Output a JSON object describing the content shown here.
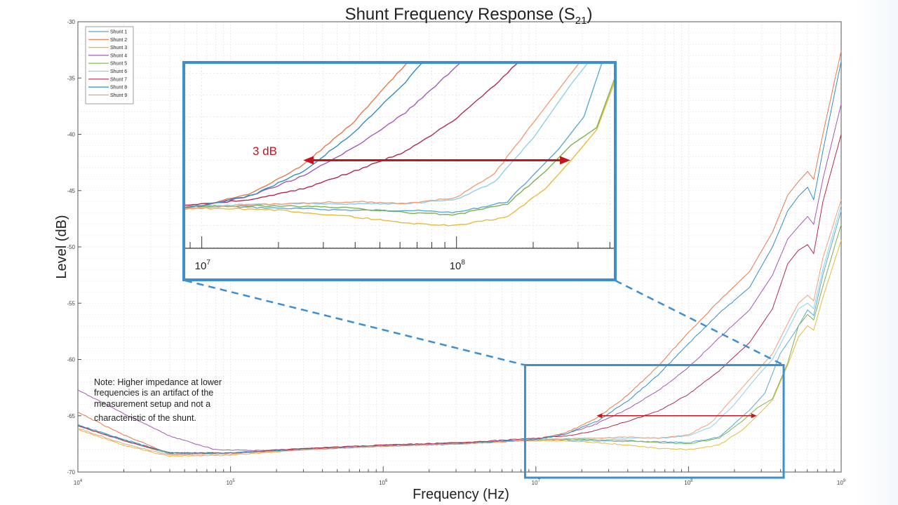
{
  "chart_data": {
    "type": "line",
    "title": "Shunt Frequency Response (S",
    "title_sub": "21",
    "title_close": ")",
    "xlabel": "Frequency (Hz)",
    "ylabel": "Level (dB)",
    "xscale": "log",
    "xlim": [
      10000,
      1000000000
    ],
    "ylim": [
      -70,
      -30
    ],
    "grid": true,
    "legend_position": "top-left",
    "yticks": [
      "-30",
      "-35",
      "-40",
      "-45",
      "-50",
      "-55",
      "-60",
      "-65",
      "-70"
    ],
    "ytick_values": [
      -30,
      -35,
      -40,
      -45,
      -50,
      -55,
      -60,
      -65,
      -70
    ],
    "xticks": [
      {
        "base": "10",
        "exp": "4",
        "value": 10000
      },
      {
        "base": "10",
        "exp": "5",
        "value": 100000
      },
      {
        "base": "10",
        "exp": "6",
        "value": 1000000
      },
      {
        "base": "10",
        "exp": "7",
        "value": 10000000
      },
      {
        "base": "10",
        "exp": "8",
        "value": 100000000
      },
      {
        "base": "10",
        "exp": "9",
        "value": 1000000000
      }
    ],
    "series": [
      {
        "name": "Shunt 1",
        "color": "#5aa9d6",
        "points": [
          [
            4,
            -65.9
          ],
          [
            4.3,
            -67.2
          ],
          [
            4.6,
            -68.3
          ],
          [
            5,
            -68.3
          ],
          [
            5.5,
            -68.0
          ],
          [
            6,
            -67.7
          ],
          [
            6.5,
            -67.5
          ],
          [
            7,
            -67.1
          ],
          [
            7.3,
            -67.2
          ],
          [
            7.6,
            -67.3
          ],
          [
            7.8,
            -67.3
          ],
          [
            8,
            -67.4
          ],
          [
            8.2,
            -66.9
          ],
          [
            8.4,
            -64.5
          ],
          [
            8.5,
            -63.0
          ],
          [
            8.6,
            -59.5
          ],
          [
            8.7,
            -57.5
          ],
          [
            8.78,
            -55.6
          ],
          [
            8.82,
            -56.1
          ],
          [
            8.88,
            -52.5
          ],
          [
            9,
            -46.8
          ]
        ]
      },
      {
        "name": "Shunt 2",
        "color": "#e8784a",
        "points": [
          [
            4,
            -64.7
          ],
          [
            4.3,
            -66.7
          ],
          [
            4.6,
            -68.4
          ],
          [
            5,
            -68.3
          ],
          [
            5.5,
            -67.9
          ],
          [
            6,
            -67.7
          ],
          [
            6.5,
            -67.4
          ],
          [
            7,
            -67.1
          ],
          [
            7.2,
            -66.5
          ],
          [
            7.4,
            -65.2
          ],
          [
            7.6,
            -63.2
          ],
          [
            7.8,
            -60.6
          ],
          [
            8,
            -57.6
          ],
          [
            8.2,
            -54.8
          ],
          [
            8.4,
            -52.2
          ],
          [
            8.55,
            -48.7
          ],
          [
            8.65,
            -45.4
          ],
          [
            8.72,
            -44.2
          ],
          [
            8.78,
            -43.3
          ],
          [
            8.82,
            -44.0
          ],
          [
            8.88,
            -40.0
          ],
          [
            9,
            -32.6
          ]
        ]
      },
      {
        "name": "Shunt 3",
        "color": "#e8bb3c",
        "points": [
          [
            4,
            -66.2
          ],
          [
            4.3,
            -67.6
          ],
          [
            4.6,
            -68.6
          ],
          [
            5,
            -68.5
          ],
          [
            5.5,
            -68.0
          ],
          [
            6,
            -67.7
          ],
          [
            6.5,
            -67.5
          ],
          [
            7,
            -67.2
          ],
          [
            7.3,
            -67.3
          ],
          [
            7.6,
            -67.6
          ],
          [
            7.8,
            -67.9
          ],
          [
            8,
            -68.0
          ],
          [
            8.2,
            -67.6
          ],
          [
            8.35,
            -66.3
          ],
          [
            8.45,
            -65.0
          ],
          [
            8.55,
            -63.6
          ],
          [
            8.65,
            -60.5
          ],
          [
            8.72,
            -58.0
          ],
          [
            8.78,
            -57.0
          ],
          [
            8.82,
            -57.4
          ],
          [
            8.88,
            -54.5
          ],
          [
            9,
            -49.4
          ]
        ]
      },
      {
        "name": "Shunt 4",
        "color": "#a559b5",
        "points": [
          [
            4,
            -62.7
          ],
          [
            4.3,
            -64.8
          ],
          [
            4.6,
            -66.8
          ],
          [
            4.9,
            -68.0
          ],
          [
            5.2,
            -68.1
          ],
          [
            5.5,
            -67.9
          ],
          [
            6,
            -67.6
          ],
          [
            6.5,
            -67.4
          ],
          [
            7,
            -67.1
          ],
          [
            7.2,
            -66.6
          ],
          [
            7.4,
            -65.7
          ],
          [
            7.6,
            -64.4
          ],
          [
            7.8,
            -62.8
          ],
          [
            8,
            -60.7
          ],
          [
            8.2,
            -58.1
          ],
          [
            8.4,
            -55.6
          ],
          [
            8.55,
            -52.5
          ],
          [
            8.65,
            -49.3
          ],
          [
            8.72,
            -48.2
          ],
          [
            8.78,
            -47.3
          ],
          [
            8.82,
            -48.0
          ],
          [
            8.88,
            -44.0
          ],
          [
            9,
            -37.3
          ]
        ]
      },
      {
        "name": "Shunt 5",
        "color": "#7cb34f",
        "points": [
          [
            4,
            -65.9
          ],
          [
            4.3,
            -67.2
          ],
          [
            4.6,
            -68.4
          ],
          [
            5,
            -68.3
          ],
          [
            5.5,
            -68.0
          ],
          [
            6,
            -67.7
          ],
          [
            6.5,
            -67.5
          ],
          [
            7,
            -67.1
          ],
          [
            7.3,
            -67.1
          ],
          [
            7.6,
            -67.2
          ],
          [
            7.8,
            -67.4
          ],
          [
            8,
            -67.5
          ],
          [
            8.2,
            -67.0
          ],
          [
            8.35,
            -65.5
          ],
          [
            8.45,
            -64.3
          ],
          [
            8.55,
            -63.5
          ],
          [
            8.65,
            -60.3
          ],
          [
            8.72,
            -57.0
          ],
          [
            8.78,
            -56.0
          ],
          [
            8.82,
            -56.5
          ],
          [
            8.88,
            -53.5
          ],
          [
            9,
            -48.0
          ]
        ]
      },
      {
        "name": "Shunt 6",
        "color": "#8fd0ea",
        "points": [
          [
            4,
            -65.9
          ],
          [
            4.3,
            -67.2
          ],
          [
            4.6,
            -68.4
          ],
          [
            5,
            -68.3
          ],
          [
            5.5,
            -68.0
          ],
          [
            6,
            -67.7
          ],
          [
            6.5,
            -67.5
          ],
          [
            7,
            -67.1
          ],
          [
            7.3,
            -67.0
          ],
          [
            7.6,
            -67.0
          ],
          [
            7.8,
            -67.0
          ],
          [
            8,
            -66.8
          ],
          [
            8.15,
            -66.0
          ],
          [
            8.3,
            -64.0
          ],
          [
            8.45,
            -61.5
          ],
          [
            8.55,
            -60.0
          ],
          [
            8.65,
            -57.4
          ],
          [
            8.72,
            -55.5
          ],
          [
            8.78,
            -55.0
          ],
          [
            8.82,
            -55.5
          ],
          [
            8.88,
            -52.0
          ],
          [
            9,
            -46.3
          ]
        ]
      },
      {
        "name": "Shunt 7",
        "color": "#b02a4e",
        "points": [
          [
            4,
            -65.9
          ],
          [
            4.3,
            -67.2
          ],
          [
            4.6,
            -68.3
          ],
          [
            5,
            -68.3
          ],
          [
            5.5,
            -67.9
          ],
          [
            6,
            -67.6
          ],
          [
            6.5,
            -67.4
          ],
          [
            7,
            -67.0
          ],
          [
            7.2,
            -66.8
          ],
          [
            7.4,
            -66.3
          ],
          [
            7.6,
            -65.5
          ],
          [
            7.8,
            -64.6
          ],
          [
            8,
            -63.1
          ],
          [
            8.2,
            -61.0
          ],
          [
            8.4,
            -58.5
          ],
          [
            8.55,
            -55.5
          ],
          [
            8.65,
            -51.5
          ],
          [
            8.72,
            -50.3
          ],
          [
            8.78,
            -49.8
          ],
          [
            8.82,
            -50.6
          ],
          [
            8.88,
            -46.0
          ],
          [
            9,
            -40.0
          ]
        ]
      },
      {
        "name": "Shunt 8",
        "color": "#2f8fc4",
        "points": [
          [
            4,
            -65.8
          ],
          [
            4.3,
            -67.1
          ],
          [
            4.6,
            -68.3
          ],
          [
            5,
            -68.3
          ],
          [
            5.5,
            -68.0
          ],
          [
            6,
            -67.7
          ],
          [
            6.5,
            -67.5
          ],
          [
            7,
            -67.1
          ],
          [
            7.2,
            -66.6
          ],
          [
            7.4,
            -65.5
          ],
          [
            7.6,
            -63.7
          ],
          [
            7.8,
            -61.4
          ],
          [
            8,
            -58.6
          ],
          [
            8.2,
            -55.9
          ],
          [
            8.4,
            -53.6
          ],
          [
            8.55,
            -50.0
          ],
          [
            8.65,
            -46.8
          ],
          [
            8.72,
            -45.5
          ],
          [
            8.78,
            -44.7
          ],
          [
            8.82,
            -45.8
          ],
          [
            8.88,
            -41.5
          ],
          [
            9,
            -33.5
          ]
        ]
      },
      {
        "name": "Shunt 9",
        "color": "#f0a07a",
        "points": [
          [
            4,
            -66.1
          ],
          [
            4.3,
            -67.5
          ],
          [
            4.6,
            -68.5
          ],
          [
            5,
            -68.4
          ],
          [
            5.5,
            -68.0
          ],
          [
            6,
            -67.7
          ],
          [
            6.5,
            -67.5
          ],
          [
            7,
            -67.2
          ],
          [
            7.3,
            -67.0
          ],
          [
            7.6,
            -66.9
          ],
          [
            7.8,
            -67.0
          ],
          [
            8,
            -66.7
          ],
          [
            8.15,
            -65.6
          ],
          [
            8.3,
            -63.3
          ],
          [
            8.45,
            -61.0
          ],
          [
            8.55,
            -59.5
          ],
          [
            8.65,
            -56.8
          ],
          [
            8.72,
            -55.0
          ],
          [
            8.78,
            -54.3
          ],
          [
            8.82,
            -54.8
          ],
          [
            8.88,
            -51.0
          ],
          [
            9,
            -45.8
          ]
        ]
      }
    ],
    "annotations": {
      "note": [
        "Note: Higher impedance at lower",
        "frequencies is an artifact of the",
        "measurement setup and not a",
        "characteristic of the shunt."
      ],
      "arrow_label": "3 dB",
      "arrow_level_db": -65,
      "arrow_from_hz": 25000000,
      "arrow_to_hz": 280000000,
      "zoom_region": {
        "x_from_hz": 8500000,
        "x_to_hz": 420000000,
        "y_from_db": -70.5,
        "y_to_db": -60.5
      },
      "inset_xticks": [
        {
          "base": "10",
          "exp": "7"
        },
        {
          "base": "10",
          "exp": "8"
        }
      ]
    },
    "colors": {
      "annotation": "#c0161c",
      "zoom_box": "#3d8fd1"
    }
  }
}
